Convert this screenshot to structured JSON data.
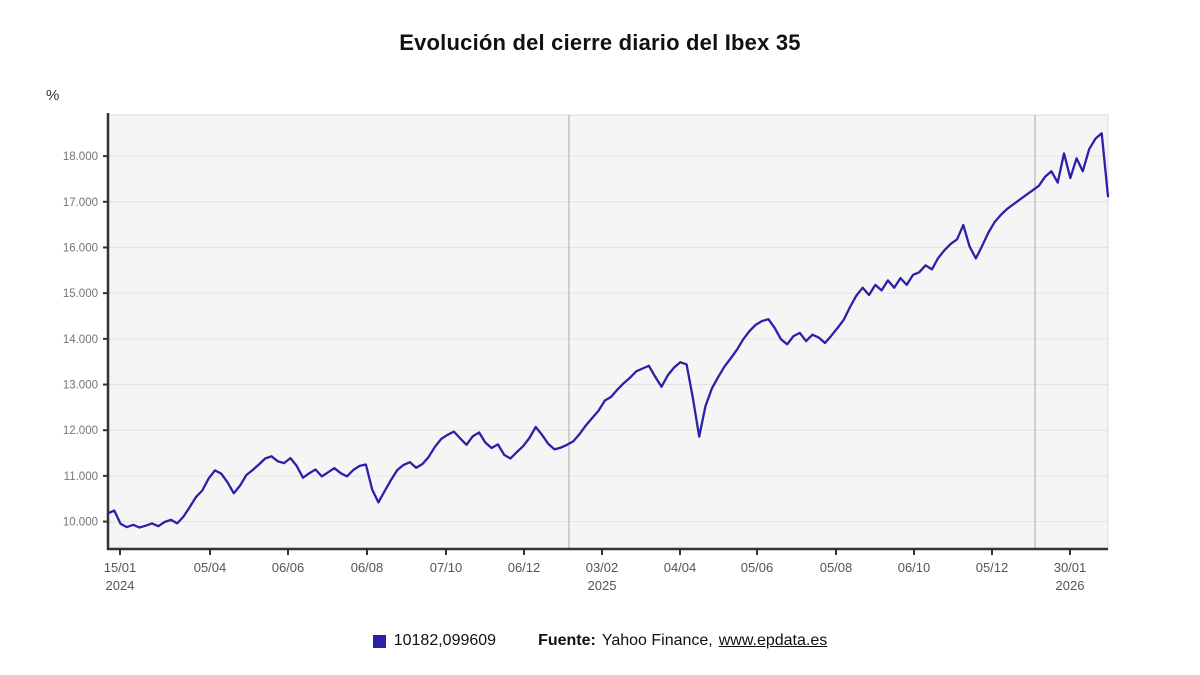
{
  "chart": {
    "title": "Evolución del cierre diario del Ibex 35"
  },
  "chart_data": {
    "type": "line",
    "title": "Evolución del cierre diario del Ibex 35",
    "xlabel": "",
    "ylabel": "%",
    "legend_position": "bottom",
    "grid": true,
    "x_axis": {
      "ticks": [
        {
          "pos": 0.012,
          "label": "15/01",
          "year": "2024"
        },
        {
          "pos": 0.102,
          "label": "05/04",
          "year": ""
        },
        {
          "pos": 0.18,
          "label": "06/06",
          "year": ""
        },
        {
          "pos": 0.259,
          "label": "06/08",
          "year": ""
        },
        {
          "pos": 0.338,
          "label": "07/10",
          "year": ""
        },
        {
          "pos": 0.416,
          "label": "06/12",
          "year": ""
        },
        {
          "pos": 0.494,
          "label": "03/02",
          "year": "2025"
        },
        {
          "pos": 0.572,
          "label": "04/04",
          "year": ""
        },
        {
          "pos": 0.649,
          "label": "05/06",
          "year": ""
        },
        {
          "pos": 0.728,
          "label": "05/08",
          "year": ""
        },
        {
          "pos": 0.806,
          "label": "06/10",
          "year": ""
        },
        {
          "pos": 0.884,
          "label": "05/12",
          "year": ""
        },
        {
          "pos": 0.962,
          "label": "30/01",
          "year": "2026"
        }
      ]
    },
    "y_axis": {
      "min": 9400,
      "max": 18900,
      "ticks": [
        {
          "value": 10000,
          "label": "10.000"
        },
        {
          "value": 11000,
          "label": "11.000"
        },
        {
          "value": 12000,
          "label": "12.000"
        },
        {
          "value": 13000,
          "label": "13.000"
        },
        {
          "value": 14000,
          "label": "14.000"
        },
        {
          "value": 15000,
          "label": "15.000"
        },
        {
          "value": 16000,
          "label": "16.000"
        },
        {
          "value": 17000,
          "label": "17.000"
        },
        {
          "value": 18000,
          "label": "18.000"
        }
      ]
    },
    "year_separators": [
      0.461,
      0.927
    ],
    "series": [
      {
        "name": "10182,099609",
        "color": "#2B21A8",
        "values": [
          10182,
          10240,
          9950,
          9880,
          9930,
          9870,
          9910,
          9960,
          9900,
          9990,
          10040,
          9960,
          10110,
          10320,
          10540,
          10680,
          10940,
          11120,
          11050,
          10860,
          10620,
          10790,
          11020,
          11130,
          11250,
          11380,
          11430,
          11320,
          11280,
          11390,
          11220,
          10960,
          11060,
          11140,
          10990,
          11080,
          11170,
          11060,
          10990,
          11130,
          11220,
          11250,
          10700,
          10420,
          10670,
          10910,
          11130,
          11240,
          11300,
          11180,
          11260,
          11420,
          11640,
          11810,
          11900,
          11970,
          11820,
          11680,
          11870,
          11950,
          11730,
          11610,
          11690,
          11460,
          11380,
          11520,
          11650,
          11830,
          12070,
          11900,
          11700,
          11580,
          11620,
          11680,
          11760,
          11920,
          12110,
          12270,
          12430,
          12650,
          12730,
          12890,
          13030,
          13150,
          13290,
          13350,
          13410,
          13170,
          12950,
          13200,
          13370,
          13490,
          13440,
          12700,
          11860,
          12530,
          12910,
          13160,
          13390,
          13570,
          13760,
          13990,
          14170,
          14310,
          14390,
          14430,
          14240,
          13990,
          13880,
          14060,
          14130,
          13950,
          14090,
          14030,
          13910,
          14070,
          14240,
          14420,
          14700,
          14950,
          15120,
          14960,
          15180,
          15060,
          15280,
          15120,
          15330,
          15180,
          15400,
          15460,
          15610,
          15520,
          15770,
          15940,
          16080,
          16180,
          16490,
          16020,
          15760,
          16040,
          16330,
          16560,
          16720,
          16850,
          16950,
          17050,
          17150,
          17250,
          17350,
          17550,
          17670,
          17420,
          18060,
          17520,
          17950,
          17670,
          18150,
          18380,
          18500,
          17120
        ]
      }
    ]
  },
  "footer": {
    "legend_value": "10182,099609",
    "source_label": "Fuente:",
    "source_text": "Yahoo Finance,",
    "source_link": "www.epdata.es",
    "swatch_color": "#2B21A8"
  },
  "colors": {
    "line": "#2B21A8",
    "plot_bg": "#f5f5f5",
    "plot_border": "#dcdcdc",
    "grid": "#e3e3e3",
    "year_separator": "#a9a9a9",
    "axis": "#333333",
    "y_tick_text": "#757575",
    "x_tick_text": "#555555",
    "unit_text": "#333333"
  }
}
